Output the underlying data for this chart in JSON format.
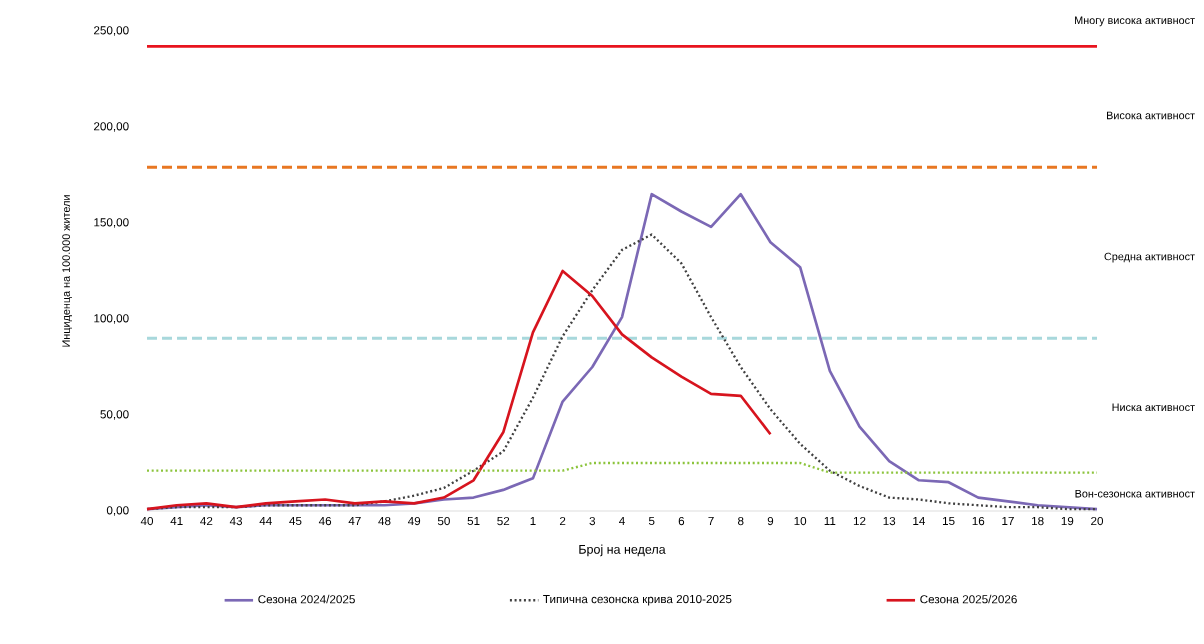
{
  "chart_data": {
    "type": "line",
    "xlabel": "Број на недела",
    "ylabel": "Инциденца на 100.000 жители",
    "categories": [
      "40",
      "41",
      "42",
      "43",
      "44",
      "45",
      "46",
      "47",
      "48",
      "49",
      "50",
      "51",
      "52",
      "1",
      "2",
      "3",
      "4",
      "5",
      "6",
      "7",
      "8",
      "9",
      "10",
      "11",
      "12",
      "13",
      "14",
      "15",
      "16",
      "17",
      "18",
      "19",
      "20"
    ],
    "ylim": [
      0,
      250
    ],
    "yticks": [
      {
        "value": 0,
        "label": "0,00"
      },
      {
        "value": 50,
        "label": "50,00"
      },
      {
        "value": 100,
        "label": "100,00"
      },
      {
        "value": 150,
        "label": "150,00"
      },
      {
        "value": 200,
        "label": "200,00"
      },
      {
        "value": 250,
        "label": "250,00"
      }
    ],
    "series": [
      {
        "name": "Сезона 2024/2025",
        "color": "#7b68b5",
        "line_style": "solid",
        "values": [
          1,
          2,
          3,
          2,
          3,
          3,
          3,
          3,
          3,
          4,
          6,
          7,
          11,
          17,
          57,
          75,
          101,
          165,
          156,
          148,
          165,
          140,
          127,
          73,
          44,
          26,
          16,
          15,
          7,
          5,
          3,
          2,
          1
        ]
      },
      {
        "name": "Типична сезонска крива 2010-2025",
        "color": "#404040",
        "line_style": "dotted",
        "values": [
          1,
          2,
          2,
          2,
          3,
          3,
          3,
          3,
          5,
          8,
          12,
          21,
          31,
          59,
          91,
          115,
          136,
          144,
          129,
          101,
          75,
          53,
          35,
          21,
          13,
          7,
          6,
          4,
          3,
          2,
          2,
          1,
          1
        ]
      },
      {
        "name": "Сезона 2025/2026",
        "color": "#d7141e",
        "line_style": "solid",
        "values": [
          1,
          3,
          4,
          2,
          4,
          5,
          6,
          4,
          5,
          4,
          7,
          16,
          41,
          93,
          125,
          112,
          92,
          80,
          70,
          61,
          60,
          40,
          null,
          null,
          null,
          null,
          null,
          null,
          null,
          null,
          null,
          null,
          null
        ]
      },
      {
        "color": "#8cc43c",
        "line_style": "dotted",
        "values": [
          21,
          21,
          21,
          21,
          21,
          21,
          21,
          21,
          21,
          21,
          21,
          21,
          21,
          21,
          21,
          25,
          25,
          25,
          25,
          25,
          25,
          25,
          25,
          20,
          20,
          20,
          20,
          20,
          20,
          20,
          20,
          20,
          20
        ]
      }
    ],
    "ref_lines": [
      {
        "axis": "y",
        "value": 242,
        "color": "#e8141e",
        "line_style": "solid"
      },
      {
        "axis": "y",
        "value": 179,
        "color": "#e87722",
        "line_style": "dashed"
      },
      {
        "axis": "y",
        "value": 90,
        "color": "#a8d8dc",
        "line_style": "dashed"
      }
    ],
    "annotations": [
      "Многу висока активност",
      "Висока активност",
      "Средна активност",
      "Ниска активност",
      "Вон-сезонска активност"
    ],
    "grid": false,
    "legend": "bottom"
  }
}
